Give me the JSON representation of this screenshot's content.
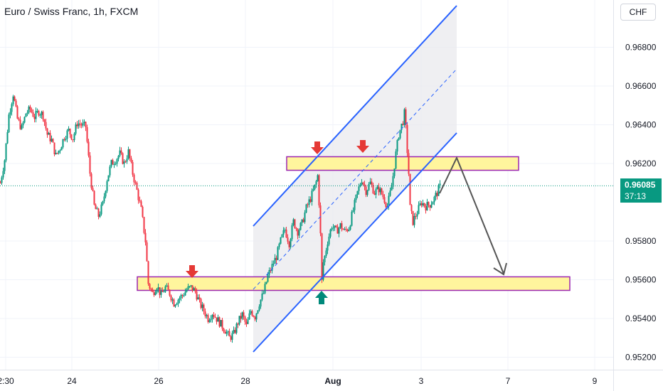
{
  "header": {
    "title": "Euro / Swiss Franc, 1h, FXCM",
    "currency_button": "CHF"
  },
  "price_label": {
    "price": "0.96085",
    "countdown": "37:13"
  },
  "colors": {
    "up": "#089981",
    "down": "#f23645",
    "channel": "#2962ff",
    "zone_fill": "#fff59d",
    "zone_border": "#9c27b0",
    "arrow_down": "#e53935",
    "arrow_up": "#00897b",
    "projection": "#555555"
  },
  "chart_data": {
    "type": "candlestick",
    "title": "Euro / Swiss Franc, 1h, FXCM",
    "x_tick_labels": [
      "2:30",
      "24",
      "26",
      "28",
      "Aug",
      "3",
      "7",
      "9"
    ],
    "y_tick_labels": [
      "0.95200",
      "0.95400",
      "0.95600",
      "0.95800",
      "0.96200",
      "0.96400",
      "0.96600",
      "0.96800"
    ],
    "ylim": [
      0.9515,
      0.9705
    ],
    "current_price": 0.96085,
    "ohlc_close_path": [
      [
        0,
        0.961
      ],
      [
        6,
        0.9622
      ],
      [
        12,
        0.9645
      ],
      [
        18,
        0.9656
      ],
      [
        24,
        0.9643
      ],
      [
        30,
        0.9638
      ],
      [
        36,
        0.9646
      ],
      [
        42,
        0.9648
      ],
      [
        48,
        0.9644
      ],
      [
        54,
        0.9647
      ],
      [
        60,
        0.9645
      ],
      [
        66,
        0.9635
      ],
      [
        72,
        0.9632
      ],
      [
        78,
        0.9624
      ],
      [
        84,
        0.9628
      ],
      [
        90,
        0.9634
      ],
      [
        96,
        0.9637
      ],
      [
        102,
        0.9633
      ],
      [
        108,
        0.9641
      ],
      [
        114,
        0.964
      ],
      [
        120,
        0.9639
      ],
      [
        126,
        0.9615
      ],
      [
        132,
        0.9598
      ],
      [
        138,
        0.9593
      ],
      [
        144,
        0.9599
      ],
      [
        150,
        0.9612
      ],
      [
        156,
        0.962
      ],
      [
        162,
        0.9622
      ],
      [
        168,
        0.9625
      ],
      [
        174,
        0.962
      ],
      [
        180,
        0.9626
      ],
      [
        186,
        0.9615
      ],
      [
        192,
        0.9606
      ],
      [
        198,
        0.9596
      ],
      [
        204,
        0.958
      ],
      [
        208,
        0.9558
      ],
      [
        214,
        0.9553
      ],
      [
        220,
        0.9557
      ],
      [
        226,
        0.9552
      ],
      [
        232,
        0.9556
      ],
      [
        238,
        0.9553
      ],
      [
        244,
        0.9548
      ],
      [
        250,
        0.955
      ],
      [
        256,
        0.9552
      ],
      [
        262,
        0.9555
      ],
      [
        268,
        0.9556
      ],
      [
        274,
        0.9554
      ],
      [
        280,
        0.9548
      ],
      [
        286,
        0.9544
      ],
      [
        292,
        0.954
      ],
      [
        298,
        0.9543
      ],
      [
        304,
        0.954
      ],
      [
        310,
        0.9537
      ],
      [
        316,
        0.9534
      ],
      [
        322,
        0.953
      ],
      [
        328,
        0.9532
      ],
      [
        334,
        0.9538
      ],
      [
        340,
        0.9542
      ],
      [
        346,
        0.9536
      ],
      [
        352,
        0.9544
      ],
      [
        358,
        0.9541
      ],
      [
        364,
        0.9548
      ],
      [
        370,
        0.9553
      ],
      [
        376,
        0.9562
      ],
      [
        382,
        0.9567
      ],
      [
        388,
        0.9572
      ],
      [
        394,
        0.958
      ],
      [
        400,
        0.9586
      ],
      [
        406,
        0.9579
      ],
      [
        412,
        0.959
      ],
      [
        418,
        0.9585
      ],
      [
        424,
        0.9589
      ],
      [
        430,
        0.9597
      ],
      [
        436,
        0.9602
      ],
      [
        442,
        0.9608
      ],
      [
        446,
        0.9613
      ],
      [
        448,
        0.96
      ],
      [
        452,
        0.9566
      ],
      [
        456,
        0.9572
      ],
      [
        460,
        0.958
      ],
      [
        466,
        0.9588
      ],
      [
        472,
        0.9585
      ],
      [
        478,
        0.9588
      ],
      [
        484,
        0.9585
      ],
      [
        490,
        0.9587
      ],
      [
        496,
        0.9596
      ],
      [
        502,
        0.9605
      ],
      [
        508,
        0.9612
      ],
      [
        514,
        0.9606
      ],
      [
        520,
        0.961
      ],
      [
        526,
        0.9605
      ],
      [
        532,
        0.9607
      ],
      [
        538,
        0.9603
      ],
      [
        544,
        0.9598
      ],
      [
        550,
        0.9608
      ],
      [
        556,
        0.9625
      ],
      [
        560,
        0.9635
      ],
      [
        566,
        0.9642
      ],
      [
        570,
        0.9638
      ],
      [
        574,
        0.9615
      ],
      [
        576,
        0.9597
      ],
      [
        580,
        0.959
      ],
      [
        586,
        0.9595
      ],
      [
        592,
        0.96
      ],
      [
        598,
        0.9598
      ],
      [
        604,
        0.9599
      ],
      [
        610,
        0.9602
      ],
      [
        614,
        0.9605
      ],
      [
        618,
        0.9608
      ]
    ],
    "annotations": {
      "ascending_channel": true,
      "resistance_zone": [
        0.96165,
        0.96235
      ],
      "support_zone": [
        0.95545,
        0.95615
      ],
      "down_arrows_count": 3,
      "up_arrows_count": 1,
      "projection": "down to support zone"
    }
  }
}
